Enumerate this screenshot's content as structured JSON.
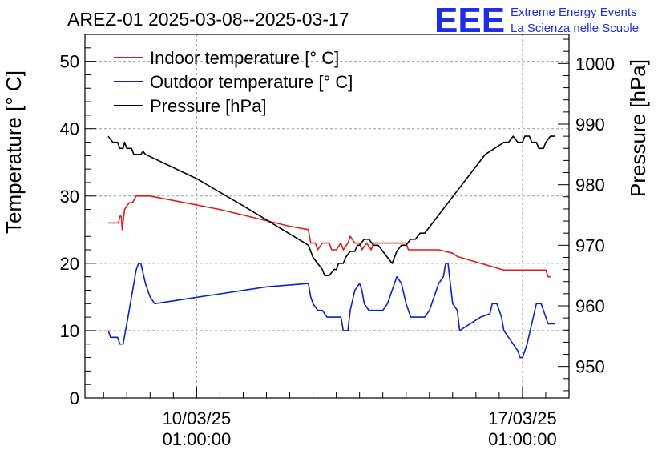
{
  "header": {
    "title": "AREZ-01 2025-03-08--2025-03-17",
    "logo_text": "EEE",
    "org_line1": "Extreme Energy Events",
    "org_line2": "La Scienza nelle Scuole"
  },
  "colors": {
    "indoor": "#e31a1c",
    "outdoor": "#0b1fd6",
    "pressure": "#000000",
    "logo": "#1e2ee6",
    "grid": "#9a9a9a"
  },
  "chart_data": {
    "type": "line",
    "title": "AREZ-01 2025-03-08--2025-03-17",
    "xlabel": "",
    "ylabel": "Temperature [° C]",
    "ylabel_right": "Pressure [hPa]",
    "xlim": [
      7.6,
      18.0
    ],
    "ylim": [
      0,
      54
    ],
    "ylim_right": [
      944.8,
      1004.8
    ],
    "grid": true,
    "legend_position": "top-left",
    "x_ticks": [
      {
        "x": 10.0,
        "line1": "10/03/25",
        "line2": "01:00:00"
      },
      {
        "x": 17.0,
        "line1": "17/03/25",
        "line2": "01:00:00"
      }
    ],
    "y_ticks": [
      0,
      10,
      20,
      30,
      40,
      50
    ],
    "y_ticks_right": [
      950,
      960,
      970,
      980,
      990,
      1000
    ],
    "series": [
      {
        "name": "Indoor temperature [° C]",
        "axis": "left",
        "points": [
          [
            8.1,
            26
          ],
          [
            8.32,
            26
          ],
          [
            8.35,
            27
          ],
          [
            8.38,
            27
          ],
          [
            8.4,
            25
          ],
          [
            8.45,
            28
          ],
          [
            8.55,
            29
          ],
          [
            8.62,
            29
          ],
          [
            8.7,
            30
          ],
          [
            9.0,
            30
          ],
          [
            10.5,
            28
          ],
          [
            12.0,
            25.5
          ],
          [
            12.4,
            25
          ],
          [
            12.45,
            23
          ],
          [
            12.55,
            23
          ],
          [
            12.6,
            22
          ],
          [
            12.7,
            23
          ],
          [
            12.85,
            23
          ],
          [
            12.9,
            22
          ],
          [
            13.0,
            22
          ],
          [
            13.1,
            23
          ],
          [
            13.15,
            22
          ],
          [
            13.25,
            23
          ],
          [
            13.3,
            24
          ],
          [
            13.4,
            23
          ],
          [
            13.5,
            23
          ],
          [
            13.55,
            22
          ],
          [
            13.65,
            23
          ],
          [
            13.75,
            22
          ],
          [
            13.8,
            23
          ],
          [
            14.5,
            23
          ],
          [
            14.55,
            22
          ],
          [
            15.2,
            22
          ],
          [
            15.5,
            21.5
          ],
          [
            15.6,
            21
          ],
          [
            16.1,
            20
          ],
          [
            16.6,
            19
          ],
          [
            17.5,
            19
          ],
          [
            17.55,
            18
          ],
          [
            17.6,
            18
          ]
        ]
      },
      {
        "name": "Outdoor temperature [° C]",
        "axis": "left",
        "points": [
          [
            8.1,
            10
          ],
          [
            8.15,
            9
          ],
          [
            8.3,
            9
          ],
          [
            8.35,
            8
          ],
          [
            8.42,
            8
          ],
          [
            8.5,
            11
          ],
          [
            8.6,
            15
          ],
          [
            8.7,
            19
          ],
          [
            8.75,
            20
          ],
          [
            8.8,
            20
          ],
          [
            8.9,
            17
          ],
          [
            9.0,
            15
          ],
          [
            9.1,
            14
          ],
          [
            11.5,
            16.5
          ],
          [
            12.4,
            17
          ],
          [
            12.45,
            15
          ],
          [
            12.5,
            14
          ],
          [
            12.6,
            13
          ],
          [
            12.7,
            13
          ],
          [
            12.8,
            12
          ],
          [
            13.1,
            12
          ],
          [
            13.15,
            10
          ],
          [
            13.25,
            10
          ],
          [
            13.3,
            13
          ],
          [
            13.4,
            16
          ],
          [
            13.5,
            17
          ],
          [
            13.55,
            16
          ],
          [
            13.6,
            14
          ],
          [
            13.7,
            13
          ],
          [
            14.0,
            13
          ],
          [
            14.1,
            14
          ],
          [
            14.2,
            16
          ],
          [
            14.3,
            18
          ],
          [
            14.4,
            17
          ],
          [
            14.5,
            14
          ],
          [
            14.6,
            12
          ],
          [
            14.9,
            12
          ],
          [
            15.0,
            13
          ],
          [
            15.1,
            15
          ],
          [
            15.2,
            17
          ],
          [
            15.3,
            18
          ],
          [
            15.35,
            20
          ],
          [
            15.4,
            20
          ],
          [
            15.5,
            14
          ],
          [
            15.6,
            13
          ],
          [
            15.65,
            10
          ],
          [
            16.1,
            12
          ],
          [
            16.3,
            12.5
          ],
          [
            16.35,
            14
          ],
          [
            16.45,
            14
          ],
          [
            16.55,
            12
          ],
          [
            16.6,
            10
          ],
          [
            16.7,
            9
          ],
          [
            16.8,
            8
          ],
          [
            16.9,
            7
          ],
          [
            16.95,
            6
          ],
          [
            17.0,
            6
          ],
          [
            17.1,
            8
          ],
          [
            17.2,
            11
          ],
          [
            17.3,
            14
          ],
          [
            17.4,
            14
          ],
          [
            17.5,
            12
          ],
          [
            17.55,
            11
          ],
          [
            17.7,
            11
          ]
        ]
      },
      {
        "name": "Pressure [hPa]",
        "axis": "right",
        "points": [
          [
            8.1,
            988
          ],
          [
            8.2,
            987
          ],
          [
            8.3,
            987
          ],
          [
            8.35,
            986
          ],
          [
            8.42,
            986
          ],
          [
            8.45,
            987
          ],
          [
            8.5,
            986
          ],
          [
            8.6,
            986
          ],
          [
            8.65,
            985
          ],
          [
            8.8,
            985
          ],
          [
            8.85,
            985.5
          ],
          [
            8.9,
            985
          ],
          [
            10.0,
            981
          ],
          [
            11.0,
            976.5
          ],
          [
            12.4,
            970
          ],
          [
            12.5,
            968
          ],
          [
            12.6,
            967
          ],
          [
            12.7,
            966
          ],
          [
            12.75,
            965
          ],
          [
            12.85,
            965
          ],
          [
            12.95,
            966
          ],
          [
            13.0,
            966
          ],
          [
            13.05,
            967
          ],
          [
            13.15,
            967
          ],
          [
            13.2,
            968
          ],
          [
            13.3,
            969
          ],
          [
            13.4,
            969
          ],
          [
            13.45,
            970
          ],
          [
            13.5,
            970
          ],
          [
            13.6,
            971
          ],
          [
            13.7,
            971
          ],
          [
            13.8,
            970
          ],
          [
            13.9,
            970
          ],
          [
            14.0,
            969
          ],
          [
            14.1,
            968
          ],
          [
            14.2,
            967
          ],
          [
            14.25,
            968
          ],
          [
            14.3,
            969
          ],
          [
            14.4,
            970
          ],
          [
            14.5,
            970
          ],
          [
            14.6,
            971
          ],
          [
            14.7,
            971
          ],
          [
            14.8,
            972
          ],
          [
            14.9,
            972
          ],
          [
            15.0,
            973
          ],
          [
            15.1,
            974
          ],
          [
            15.2,
            975
          ],
          [
            15.3,
            976
          ],
          [
            15.4,
            977
          ],
          [
            15.5,
            978
          ],
          [
            15.6,
            979
          ],
          [
            15.7,
            980
          ],
          [
            15.8,
            981
          ],
          [
            16.0,
            983
          ],
          [
            16.2,
            985
          ],
          [
            16.4,
            986
          ],
          [
            16.6,
            987
          ],
          [
            16.7,
            987
          ],
          [
            16.8,
            988
          ],
          [
            16.9,
            987
          ],
          [
            17.0,
            987
          ],
          [
            17.05,
            988
          ],
          [
            17.15,
            988
          ],
          [
            17.2,
            987
          ],
          [
            17.3,
            987
          ],
          [
            17.35,
            986
          ],
          [
            17.45,
            986
          ],
          [
            17.5,
            987
          ],
          [
            17.6,
            988
          ],
          [
            17.7,
            988
          ]
        ]
      }
    ]
  }
}
